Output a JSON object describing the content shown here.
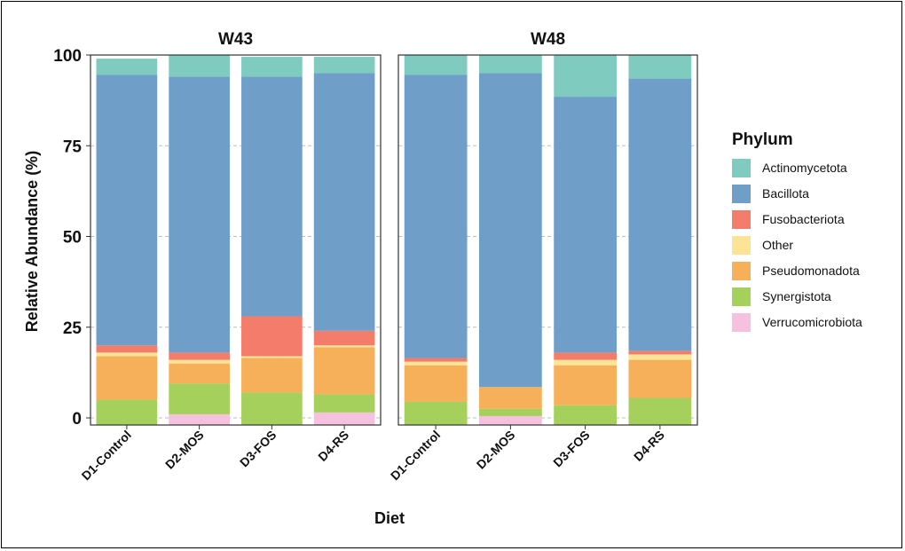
{
  "chart_data": {
    "type": "bar",
    "stacked": true,
    "xlabel": "Diet",
    "ylabel": "Relative Abundance (%)",
    "ylim": [
      0,
      100
    ],
    "yticks": [
      0,
      25,
      50,
      75,
      100
    ],
    "grid": "horizontal dashed",
    "legend": {
      "title": "Phylum",
      "position": "right",
      "entries": [
        {
          "name": "Actinomycetota",
          "color": "#80cbc0"
        },
        {
          "name": "Bacillota",
          "color": "#6f9fc9"
        },
        {
          "name": "Fusobacteriota",
          "color": "#f47c6a"
        },
        {
          "name": "Other",
          "color": "#fde396"
        },
        {
          "name": "Pseudomonadota",
          "color": "#f7b05a"
        },
        {
          "name": "Synergistota",
          "color": "#a6d05c"
        },
        {
          "name": "Verrucomicrobiota",
          "color": "#f6c1de"
        }
      ]
    },
    "categories": [
      "D1-Control",
      "D2-MOS",
      "D3-FOS",
      "D4-RS"
    ],
    "panels": [
      {
        "title": "W43",
        "series": [
          {
            "name": "Verrucomicrobiota",
            "values": [
              0,
              1,
              0,
              1.5
            ]
          },
          {
            "name": "Synergistota",
            "values": [
              5,
              8.5,
              7,
              5
            ]
          },
          {
            "name": "Pseudomonadota",
            "values": [
              12,
              5.5,
              9.5,
              13
            ]
          },
          {
            "name": "Other",
            "values": [
              1,
              1,
              0.5,
              0.5
            ]
          },
          {
            "name": "Fusobacteriota",
            "values": [
              2,
              2,
              11,
              4
            ]
          },
          {
            "name": "Bacillota",
            "values": [
              74.5,
              76,
              66,
              71
            ]
          },
          {
            "name": "Actinomycetota",
            "values": [
              4.5,
              6,
              5.5,
              4.5
            ]
          }
        ]
      },
      {
        "title": "W48",
        "series": [
          {
            "name": "Verrucomicrobiota",
            "values": [
              0,
              0.5,
              0,
              0
            ]
          },
          {
            "name": "Synergistota",
            "values": [
              4.5,
              2,
              3.5,
              5.5
            ]
          },
          {
            "name": "Pseudomonadota",
            "values": [
              10,
              6,
              11,
              10.5
            ]
          },
          {
            "name": "Other",
            "values": [
              1,
              0,
              1.5,
              1.5
            ]
          },
          {
            "name": "Fusobacteriota",
            "values": [
              1,
              0,
              2,
              1
            ]
          },
          {
            "name": "Bacillota",
            "values": [
              78,
              86.5,
              70.5,
              75
            ]
          },
          {
            "name": "Actinomycetota",
            "values": [
              5.5,
              5,
              11.5,
              6.5
            ]
          }
        ]
      }
    ]
  }
}
